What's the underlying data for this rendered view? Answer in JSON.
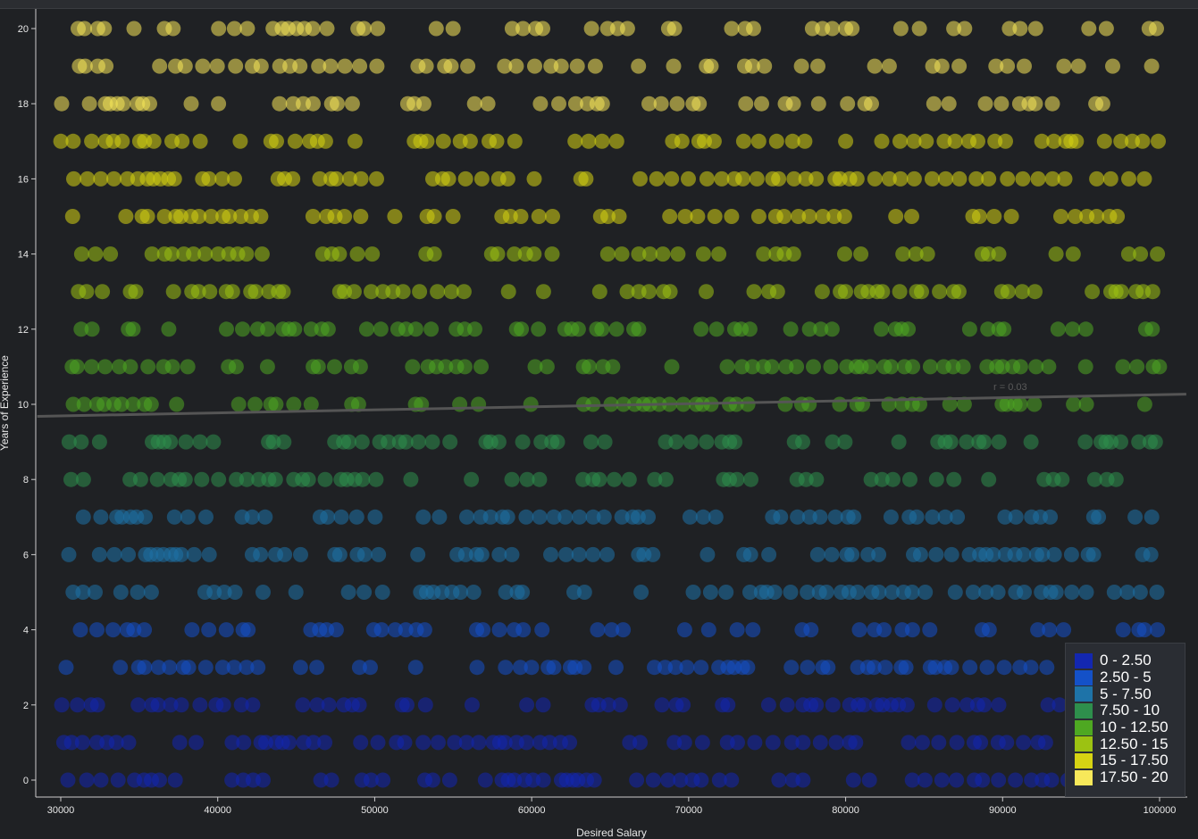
{
  "chart_data": {
    "type": "scatter",
    "title": "",
    "xlabel": "Desired Salary",
    "ylabel": "Years of Experience",
    "xlim": [
      28500,
      101700
    ],
    "ylim": [
      -0.7,
      20.3
    ],
    "x_ticks": [
      "30000",
      "40000",
      "50000",
      "60000",
      "70000",
      "80000",
      "90000",
      "100000"
    ],
    "y_ticks": [
      "0",
      "2",
      "4",
      "6",
      "8",
      "10",
      "12",
      "14",
      "16",
      "18",
      "20"
    ],
    "x_tick_values": [
      30000,
      40000,
      50000,
      60000,
      70000,
      80000,
      90000,
      100000
    ],
    "y_tick_values": [
      0,
      2,
      4,
      6,
      8,
      10,
      12,
      14,
      16,
      18,
      20
    ],
    "y_levels": [
      0,
      1,
      2,
      3,
      4,
      5,
      6,
      7,
      8,
      9,
      10,
      11,
      12,
      13,
      14,
      15,
      16,
      17,
      18,
      19,
      20
    ],
    "x_range_points": [
      30000,
      100000
    ],
    "trendline": {
      "label": "r = 0.03",
      "x": [
        28500,
        101700
      ],
      "y": [
        9.68,
        10.27
      ],
      "color": "#555555"
    },
    "grid": false,
    "legend_position": "bottom-right",
    "legend": [
      {
        "label": "0 - 2.50",
        "color": "#1327b0"
      },
      {
        "label": "2.50 - 5",
        "color": "#1451c8"
      },
      {
        "label": "5 - 7.50",
        "color": "#1e73a8"
      },
      {
        "label": "7.50 - 10",
        "color": "#2e8f4c"
      },
      {
        "label": "10 - 12.50",
        "color": "#4ea822"
      },
      {
        "label": "12.50 - 15",
        "color": "#9cc212"
      },
      {
        "label": "15 - 17.50",
        "color": "#d6d313"
      },
      {
        "label": "17.50 - 20",
        "color": "#f7e85a"
      }
    ]
  }
}
